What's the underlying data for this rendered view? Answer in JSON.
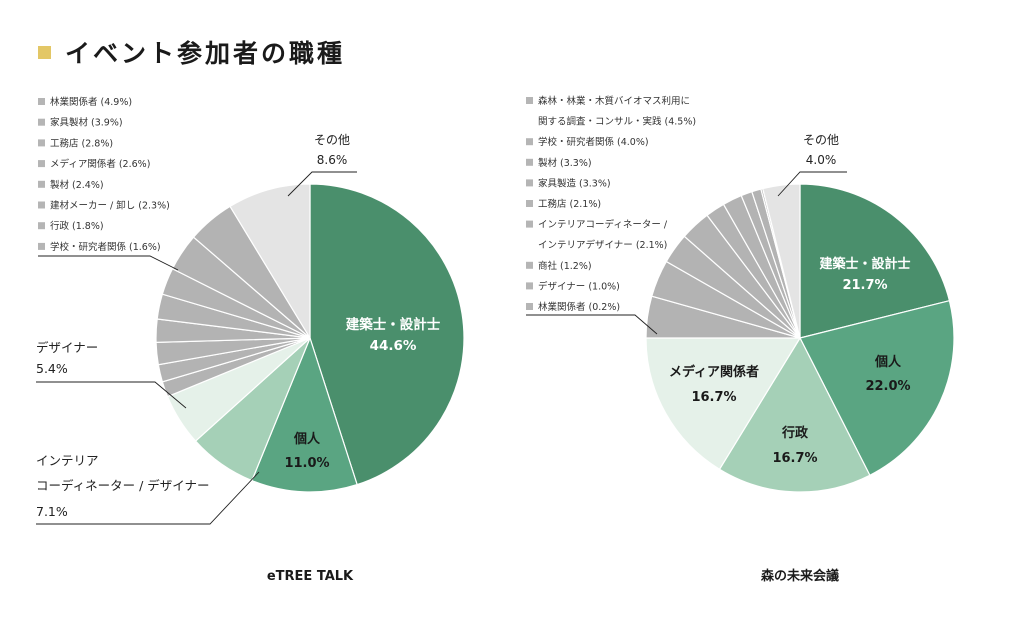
{
  "title": "イベント参加者の職種",
  "colors": {
    "accent": "#e3c766",
    "dark_green": "#4a8f6c",
    "mid_green": "#5aa582",
    "light_green": "#a5d0b7",
    "pale_green": "#e5f1e9",
    "light_gray": "#e4e4e4",
    "gray": "#b3b3b3",
    "legend_square": "#b5b5b5"
  },
  "chart_data": [
    {
      "type": "pie",
      "caption": "eTREE TALK",
      "slices": [
        {
          "label": "建築士・設計士",
          "value": 44.6
        },
        {
          "label": "個人",
          "value": 11.0
        },
        {
          "label": "インテリアコーディネーター / デザイナー",
          "value": 7.1
        },
        {
          "label": "デザイナー",
          "value": 5.4
        },
        {
          "label": "学校・研究者関係",
          "value": 1.6
        },
        {
          "label": "行政",
          "value": 1.8
        },
        {
          "label": "建材メーカー / 卸し",
          "value": 2.3
        },
        {
          "label": "製材",
          "value": 2.4
        },
        {
          "label": "メディア関係者",
          "value": 2.6
        },
        {
          "label": "工務店",
          "value": 2.8
        },
        {
          "label": "家具製材",
          "value": 3.9
        },
        {
          "label": "林業関係者",
          "value": 4.9
        },
        {
          "label": "その他",
          "value": 8.6
        }
      ],
      "legend": [
        "林業関係者 (4.9%)",
        "家具製材 (3.9%)",
        "工務店 (2.8%)",
        "メディア関係者 (2.6%)",
        "製材 (2.4%)",
        "建材メーカー / 卸し (2.3%)",
        "行政 (1.8%)",
        "学校・研究者関係 (1.6%)"
      ],
      "callouts": {
        "sonota_name": "その他",
        "sonota_pct": "8.6%",
        "kenchiku_name": "建築士・設計士",
        "kenchiku_pct": "44.6%",
        "kojin_name": "個人",
        "kojin_pct": "11.0%",
        "designer_name": "デザイナー",
        "designer_pct": "5.4%",
        "interior_line1": "インテリア",
        "interior_line2": "コーディネーター / デザイナー",
        "interior_pct": "7.1%"
      }
    },
    {
      "type": "pie",
      "caption": "森の未来会議",
      "slices": [
        {
          "label": "建築士・設計士",
          "value": 21.7
        },
        {
          "label": "個人",
          "value": 22.0
        },
        {
          "label": "行政",
          "value": 16.7
        },
        {
          "label": "メディア関係者",
          "value": 16.7
        },
        {
          "label": "森林・林業・木質バイオマス利用に関する調査・コンサル・実践",
          "value": 4.5
        },
        {
          "label": "学校・研究者関係",
          "value": 4.0
        },
        {
          "label": "製材",
          "value": 3.3
        },
        {
          "label": "家具製造",
          "value": 3.3
        },
        {
          "label": "工務店",
          "value": 2.1
        },
        {
          "label": "インテリアコーディネーター / インテリアデザイナー",
          "value": 2.1
        },
        {
          "label": "商社",
          "value": 1.2
        },
        {
          "label": "デザイナー",
          "value": 1.0
        },
        {
          "label": "林業関係者",
          "value": 0.2
        },
        {
          "label": "その他",
          "value": 4.0
        }
      ],
      "legend": [
        "森林・林業・木質バイオマス利用に",
        "関する調査・コンサル・実践 (4.5%)",
        "学校・研究者関係 (4.0%)",
        "製材 (3.3%)",
        "家具製造 (3.3%)",
        "工務店 (2.1%)",
        "インテリアコーディネーター /",
        "インテリアデザイナー (2.1%)",
        "商社 (1.2%)",
        "デザイナー (1.0%)",
        "林業関係者 (0.2%)"
      ],
      "legend_square_rows": [
        true,
        false,
        true,
        true,
        true,
        true,
        true,
        false,
        true,
        true,
        true
      ],
      "callouts": {
        "sonota_name": "その他",
        "sonota_pct": "4.0%",
        "kenchiku_name": "建築士・設計士",
        "kenchiku_pct": "21.7%",
        "kojin_name": "個人",
        "kojin_pct": "22.0%",
        "gyosei_name": "行政",
        "gyosei_pct": "16.7%",
        "media_name": "メディア関係者",
        "media_pct": "16.7%"
      }
    }
  ]
}
